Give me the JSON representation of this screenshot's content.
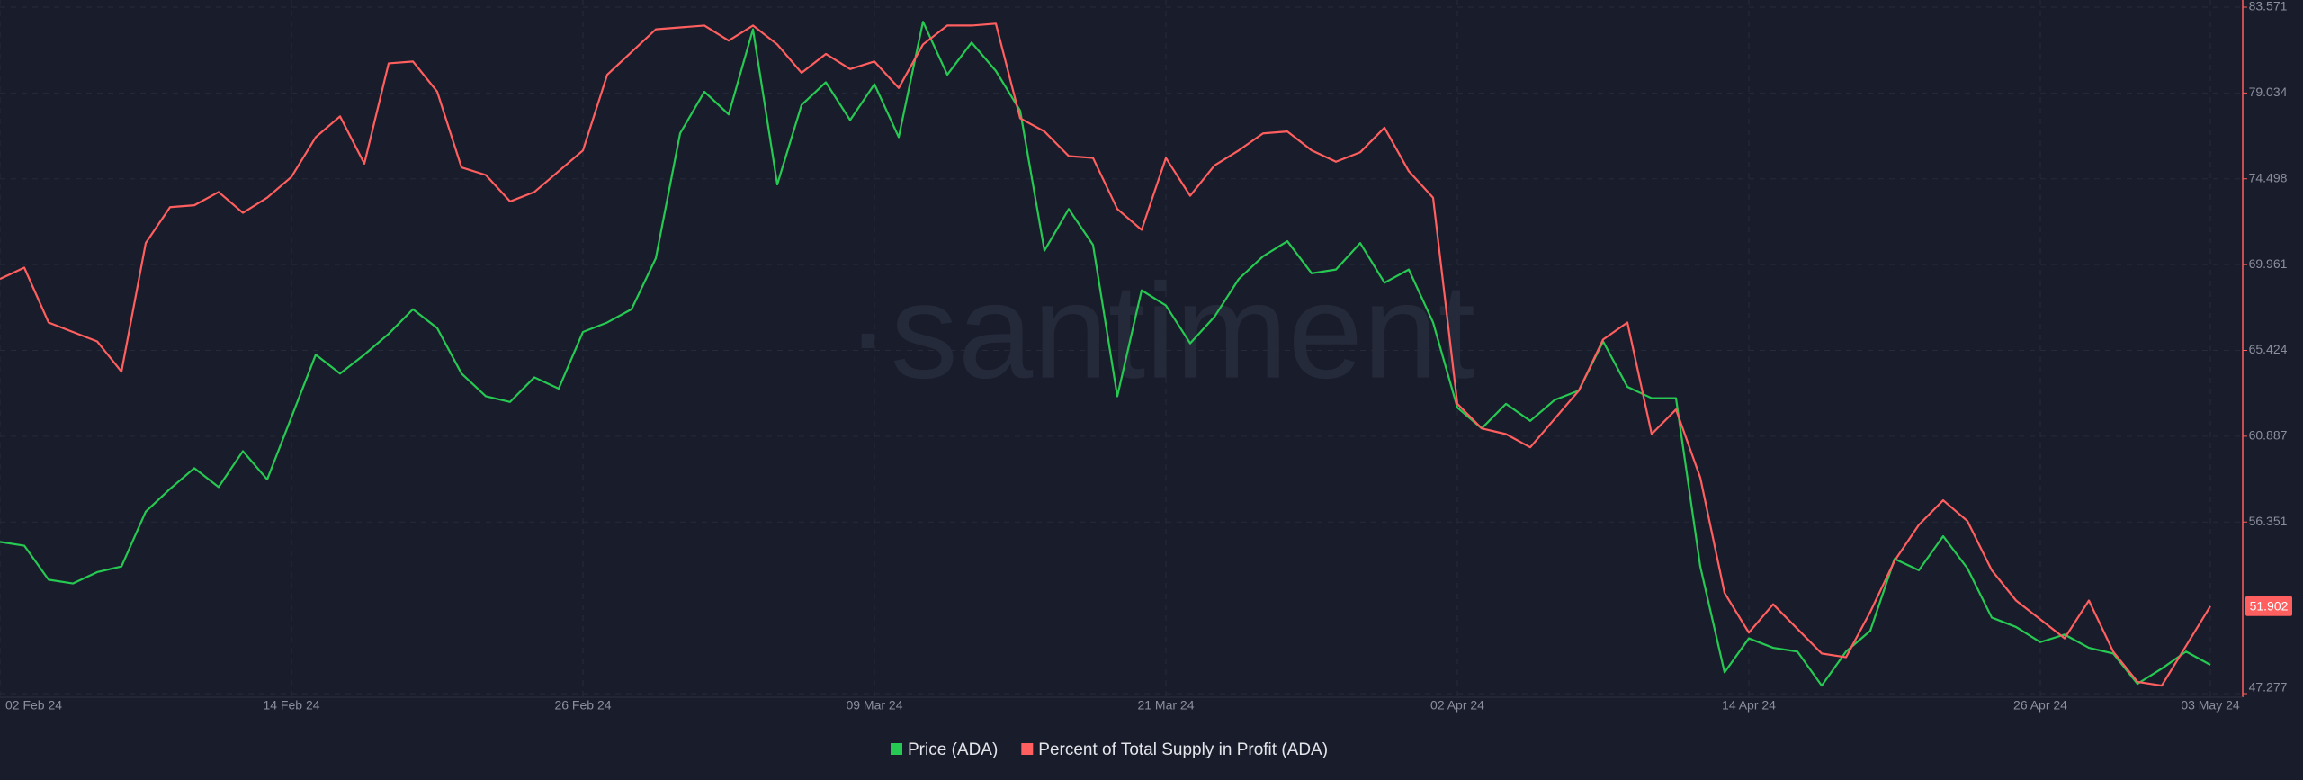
{
  "chart_data": {
    "type": "line",
    "watermark": "·santiment",
    "categories": [
      "02 Feb 24",
      null,
      null,
      null,
      null,
      null,
      null,
      null,
      null,
      null,
      null,
      null,
      "14 Feb 24",
      null,
      null,
      null,
      null,
      null,
      null,
      null,
      null,
      null,
      null,
      null,
      "26 Feb 24",
      null,
      null,
      null,
      null,
      null,
      null,
      null,
      null,
      null,
      null,
      null,
      "09 Mar 24",
      null,
      null,
      null,
      null,
      null,
      null,
      null,
      null,
      null,
      null,
      null,
      "21 Mar 24",
      null,
      null,
      null,
      null,
      null,
      null,
      null,
      null,
      null,
      null,
      null,
      "02 Apr 24",
      null,
      null,
      null,
      null,
      null,
      null,
      null,
      null,
      null,
      null,
      null,
      "14 Apr 24",
      null,
      null,
      null,
      null,
      null,
      null,
      null,
      null,
      null,
      null,
      null,
      "26 Apr 24",
      null,
      null,
      null,
      null,
      null,
      null,
      "03 May 24"
    ],
    "ylim": [
      47.277,
      83.571
    ],
    "yticks": [
      47.277,
      56.351,
      60.887,
      65.424,
      69.961,
      74.498,
      79.034,
      83.571
    ],
    "grid": true,
    "series": [
      {
        "name": "Price (ADA)",
        "color": "#26c952",
        "values": [
          55.3,
          55.1,
          53.3,
          53.1,
          53.7,
          54.0,
          56.9,
          58.1,
          59.2,
          58.2,
          60.1,
          58.6,
          61.9,
          65.2,
          64.2,
          65.2,
          66.3,
          67.6,
          66.6,
          64.2,
          63.0,
          62.7,
          64.0,
          63.4,
          66.4,
          66.9,
          67.6,
          70.3,
          76.9,
          79.1,
          77.9,
          82.4,
          74.2,
          78.4,
          79.6,
          77.6,
          79.5,
          76.7,
          82.8,
          80.0,
          81.7,
          80.2,
          78.1,
          70.7,
          72.9,
          71.0,
          63.0,
          68.6,
          67.8,
          65.8,
          67.2,
          69.2,
          70.4,
          71.2,
          69.5,
          69.7,
          71.1,
          69.0,
          69.7,
          66.9,
          62.4,
          61.3,
          62.6,
          61.7,
          62.8,
          63.3,
          65.9,
          63.5,
          62.9,
          62.9,
          54.0,
          48.4,
          50.2,
          49.7,
          49.5,
          47.7,
          49.5,
          50.6,
          54.4,
          53.8,
          55.6,
          53.9,
          51.3,
          50.8,
          50.0,
          50.4,
          49.7,
          49.4,
          47.8,
          48.6,
          49.5,
          48.8
        ]
      },
      {
        "name": "Percent of Total Supply in Profit (ADA)",
        "color": "#ff5f5f",
        "values": [
          69.2,
          69.8,
          66.9,
          66.4,
          65.9,
          64.3,
          71.1,
          73.0,
          73.1,
          73.8,
          72.7,
          73.5,
          74.6,
          76.7,
          77.8,
          75.3,
          80.6,
          80.7,
          79.1,
          75.1,
          74.7,
          73.3,
          73.8,
          74.9,
          76.0,
          80.0,
          81.2,
          82.4,
          82.5,
          82.6,
          81.8,
          82.6,
          81.6,
          80.1,
          81.1,
          80.3,
          80.7,
          79.3,
          81.6,
          82.6,
          82.6,
          82.7,
          77.7,
          77.0,
          75.7,
          75.6,
          72.9,
          71.8,
          75.6,
          73.6,
          75.2,
          76.0,
          76.9,
          77.0,
          76.0,
          75.4,
          75.9,
          77.2,
          74.9,
          73.5,
          62.6,
          61.3,
          61.0,
          60.3,
          61.8,
          63.3,
          66.0,
          66.9,
          61.0,
          62.3,
          58.7,
          52.6,
          50.5,
          52.0,
          50.7,
          49.4,
          49.2,
          51.6,
          54.3,
          56.2,
          57.5,
          56.4,
          53.8,
          52.2,
          51.2,
          50.2,
          52.2,
          49.5,
          47.9,
          47.7,
          49.8,
          51.902
        ]
      }
    ]
  }
}
